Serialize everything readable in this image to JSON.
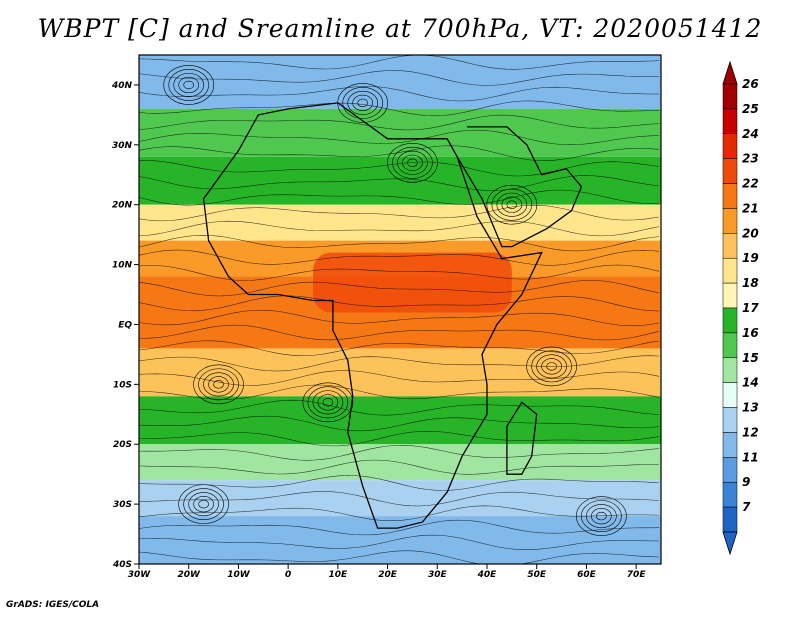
{
  "title": "WBPT [C] and Sreamline at 700hPa, VT: 2020051412",
  "credit": "GrADS: IGES/COLA",
  "map": {
    "lon_range": [
      -30,
      75
    ],
    "lat_range": [
      -40,
      45
    ],
    "lon_ticks": [
      {
        "value": -30,
        "label": "30W"
      },
      {
        "value": -20,
        "label": "20W"
      },
      {
        "value": -10,
        "label": "10W"
      },
      {
        "value": 0,
        "label": "0"
      },
      {
        "value": 10,
        "label": "10E"
      },
      {
        "value": 20,
        "label": "20E"
      },
      {
        "value": 30,
        "label": "30E"
      },
      {
        "value": 40,
        "label": "40E"
      },
      {
        "value": 50,
        "label": "50E"
      },
      {
        "value": 60,
        "label": "60E"
      },
      {
        "value": 70,
        "label": "70E"
      }
    ],
    "lat_ticks": [
      {
        "value": 40,
        "label": "40N"
      },
      {
        "value": 30,
        "label": "30N"
      },
      {
        "value": 20,
        "label": "20N"
      },
      {
        "value": 10,
        "label": "10N"
      },
      {
        "value": 0,
        "label": "EQ"
      },
      {
        "value": -10,
        "label": "10S"
      },
      {
        "value": -20,
        "label": "20S"
      },
      {
        "value": -30,
        "label": "30S"
      },
      {
        "value": -40,
        "label": "40S"
      }
    ],
    "field_bands": [
      {
        "lat_from": 45,
        "lat_to": 36,
        "value": 12
      },
      {
        "lat_from": 36,
        "lat_to": 28,
        "value": 16
      },
      {
        "lat_from": 28,
        "lat_to": 20,
        "value": 17
      },
      {
        "lat_from": 20,
        "lat_to": 14,
        "value": 19
      },
      {
        "lat_from": 14,
        "lat_to": 8,
        "value": 21
      },
      {
        "lat_from": 8,
        "lat_to": -4,
        "value": 22
      },
      {
        "lat_from": -4,
        "lat_to": -12,
        "value": 20
      },
      {
        "lat_from": -12,
        "lat_to": -20,
        "value": 17
      },
      {
        "lat_from": -20,
        "lat_to": -26,
        "value": 15
      },
      {
        "lat_from": -26,
        "lat_to": -32,
        "value": 13
      },
      {
        "lat_from": -32,
        "lat_to": -40,
        "value": 12
      }
    ],
    "warm_core": {
      "lon_from": 5,
      "lon_to": 45,
      "lat_from": 12,
      "lat_to": 2,
      "value": 23
    },
    "vortices": [
      {
        "lon": -20,
        "lat": 40,
        "name": "vortex-nw"
      },
      {
        "lon": 15,
        "lat": 37,
        "name": "vortex-mediterranean"
      },
      {
        "lon": 25,
        "lat": 27,
        "name": "vortex-libya"
      },
      {
        "lon": 45,
        "lat": 20,
        "name": "vortex-arabia"
      },
      {
        "lon": -14,
        "lat": -10,
        "name": "vortex-south-atlantic"
      },
      {
        "lon": 8,
        "lat": -13,
        "name": "vortex-angola"
      },
      {
        "lon": -17,
        "lat": -30,
        "name": "vortex-sw"
      },
      {
        "lon": 63,
        "lat": -32,
        "name": "vortex-se"
      },
      {
        "lon": 53,
        "lat": -7,
        "name": "vortex-indian"
      }
    ]
  },
  "colorbar": {
    "levels": [
      {
        "label": "26",
        "color": "#a00000"
      },
      {
        "label": "25",
        "color": "#c80000"
      },
      {
        "label": "24",
        "color": "#e62800"
      },
      {
        "label": "23",
        "color": "#f04a0a"
      },
      {
        "label": "22",
        "color": "#f57814"
      },
      {
        "label": "21",
        "color": "#fa9a28"
      },
      {
        "label": "20",
        "color": "#fdc35a"
      },
      {
        "label": "19",
        "color": "#ffe68c"
      },
      {
        "label": "18",
        "color": "#fff5b4"
      },
      {
        "label": "17",
        "color": "#28b428"
      },
      {
        "label": "16",
        "color": "#50c850"
      },
      {
        "label": "15",
        "color": "#a0e6a0"
      },
      {
        "label": "14",
        "color": "#e6fff5"
      },
      {
        "label": "13",
        "color": "#aad2f0"
      },
      {
        "label": "12",
        "color": "#82b9eb"
      },
      {
        "label": "11",
        "color": "#5a9be1"
      },
      {
        "label": "9",
        "color": "#3c82d7"
      },
      {
        "label": "7",
        "color": "#1e64c8"
      }
    ],
    "over_color": "#a00000",
    "under_color": "#1e64c8"
  }
}
